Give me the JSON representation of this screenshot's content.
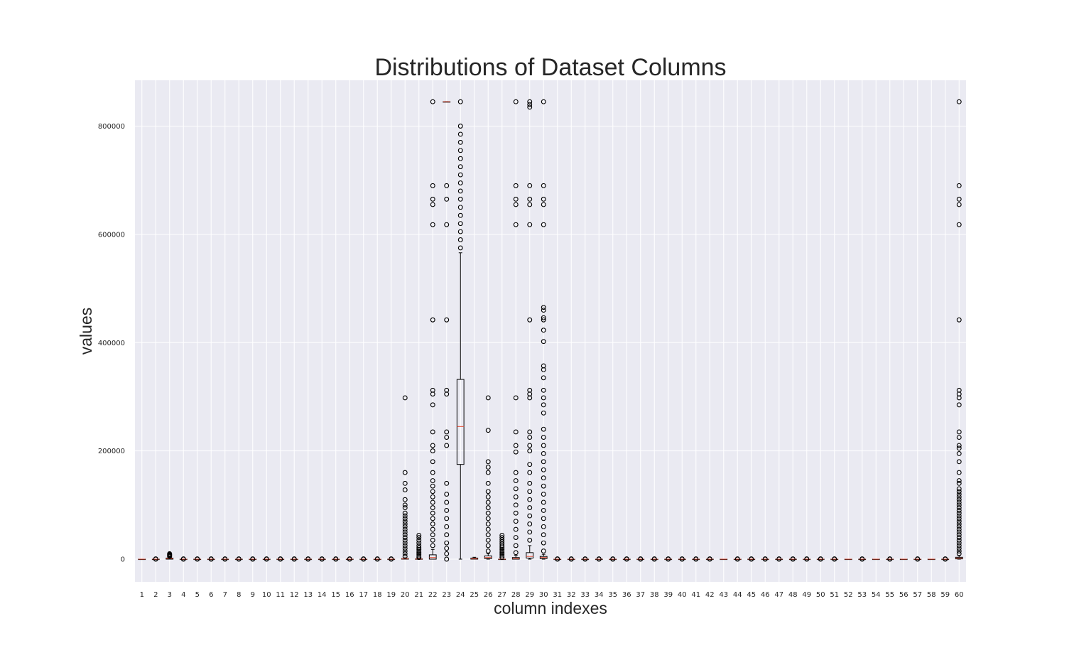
{
  "chart_data": {
    "type": "boxplot",
    "title": "Distributions of Dataset Columns",
    "xlabel": "column indexes",
    "ylabel": "values",
    "ylim": [
      -40000,
      885000
    ],
    "yticks": [
      0,
      200000,
      400000,
      600000,
      800000
    ],
    "ytick_labels": [
      "0",
      "200000",
      "400000",
      "600000",
      "800000"
    ],
    "grid": true,
    "colors": {
      "background": "#EAEAF2",
      "grid": "#FFFFFF",
      "box": "#000000",
      "median": "#E24A33"
    },
    "columns": [
      "1",
      "2",
      "3",
      "4",
      "5",
      "6",
      "7",
      "8",
      "9",
      "10",
      "11",
      "12",
      "13",
      "14",
      "15",
      "16",
      "17",
      "18",
      "19",
      "20",
      "21",
      "22",
      "23",
      "24",
      "25",
      "26",
      "27",
      "28",
      "29",
      "30",
      "31",
      "32",
      "33",
      "34",
      "35",
      "36",
      "37",
      "38",
      "39",
      "40",
      "41",
      "42",
      "43",
      "44",
      "45",
      "46",
      "47",
      "48",
      "49",
      "50",
      "51",
      "52",
      "53",
      "54",
      "55",
      "56",
      "57",
      "58",
      "59",
      "60"
    ],
    "boxes": [
      {
        "column": "1",
        "q1": 0,
        "median": 0,
        "q3": 0,
        "whislo": 0,
        "whishi": 0,
        "fliers": []
      },
      {
        "column": "2",
        "q1": 0,
        "median": 0,
        "q3": 0,
        "whislo": 0,
        "whishi": 0,
        "fliers": [
          0,
          500
        ]
      },
      {
        "column": "3",
        "q1": 0,
        "median": 1000,
        "q3": 2000,
        "whislo": 0,
        "whishi": 4000,
        "fliers": [
          5000,
          6000,
          7000,
          8000,
          9000,
          10000
        ]
      },
      {
        "column": "4",
        "q1": 0,
        "median": 0,
        "q3": 0,
        "whislo": 0,
        "whishi": 0,
        "fliers": [
          0,
          500
        ]
      },
      {
        "column": "5",
        "q1": 0,
        "median": 0,
        "q3": 0,
        "whislo": 0,
        "whishi": 0,
        "fliers": [
          0,
          500
        ]
      },
      {
        "column": "6",
        "q1": 0,
        "median": 0,
        "q3": 0,
        "whislo": 0,
        "whishi": 0,
        "fliers": [
          0,
          500
        ]
      },
      {
        "column": "7",
        "q1": 0,
        "median": 0,
        "q3": 0,
        "whislo": 0,
        "whishi": 0,
        "fliers": [
          0,
          500
        ]
      },
      {
        "column": "8",
        "q1": 0,
        "median": 0,
        "q3": 0,
        "whislo": 0,
        "whishi": 0,
        "fliers": [
          0,
          500
        ]
      },
      {
        "column": "9",
        "q1": 0,
        "median": 0,
        "q3": 0,
        "whislo": 0,
        "whishi": 0,
        "fliers": [
          0,
          500
        ]
      },
      {
        "column": "10",
        "q1": 0,
        "median": 0,
        "q3": 0,
        "whislo": 0,
        "whishi": 0,
        "fliers": [
          0,
          500
        ]
      },
      {
        "column": "11",
        "q1": 0,
        "median": 0,
        "q3": 0,
        "whislo": 0,
        "whishi": 0,
        "fliers": [
          0,
          500
        ]
      },
      {
        "column": "12",
        "q1": 0,
        "median": 0,
        "q3": 0,
        "whislo": 0,
        "whishi": 0,
        "fliers": [
          0,
          500
        ]
      },
      {
        "column": "13",
        "q1": 0,
        "median": 0,
        "q3": 0,
        "whislo": 0,
        "whishi": 0,
        "fliers": [
          0,
          500
        ]
      },
      {
        "column": "14",
        "q1": 0,
        "median": 0,
        "q3": 0,
        "whislo": 0,
        "whishi": 0,
        "fliers": [
          0,
          500
        ]
      },
      {
        "column": "15",
        "q1": 0,
        "median": 0,
        "q3": 0,
        "whislo": 0,
        "whishi": 0,
        "fliers": [
          0,
          500
        ]
      },
      {
        "column": "16",
        "q1": 0,
        "median": 0,
        "q3": 0,
        "whislo": 0,
        "whishi": 0,
        "fliers": [
          0,
          500
        ]
      },
      {
        "column": "17",
        "q1": 0,
        "median": 0,
        "q3": 0,
        "whislo": 0,
        "whishi": 0,
        "fliers": [
          0,
          500
        ]
      },
      {
        "column": "18",
        "q1": 0,
        "median": 0,
        "q3": 0,
        "whislo": 0,
        "whishi": 0,
        "fliers": [
          0,
          500
        ]
      },
      {
        "column": "19",
        "q1": 0,
        "median": 0,
        "q3": 0,
        "whislo": 0,
        "whishi": 0,
        "fliers": [
          0,
          500
        ]
      },
      {
        "column": "20",
        "q1": 0,
        "median": 500,
        "q3": 1000,
        "whislo": 0,
        "whishi": 2500,
        "fliers": [
          5000,
          10000,
          15000,
          20000,
          25000,
          30000,
          35000,
          40000,
          45000,
          50000,
          55000,
          60000,
          65000,
          70000,
          75000,
          80000,
          85000,
          95000,
          100000,
          110000,
          128000,
          140000,
          160000,
          298000
        ]
      },
      {
        "column": "21",
        "q1": 0,
        "median": 200,
        "q3": 500,
        "whislo": 0,
        "whishi": 1500,
        "fliers": [
          3000,
          6000,
          9000,
          12000,
          15000,
          18000,
          21000,
          25000,
          30000,
          35000,
          40000,
          44000
        ]
      },
      {
        "column": "22",
        "q1": 0,
        "median": 3000,
        "q3": 8000,
        "whislo": 0,
        "whishi": 18000,
        "fliers": [
          25000,
          35000,
          45000,
          55000,
          65000,
          75000,
          85000,
          95000,
          105000,
          115000,
          125000,
          135000,
          145000,
          160000,
          180000,
          200000,
          210000,
          235000,
          285000,
          305000,
          312000,
          442000,
          618000,
          655000,
          665000,
          690000,
          845000
        ]
      },
      {
        "column": "23",
        "q1": 845000,
        "median": 845000,
        "q3": 845000,
        "whislo": 845000,
        "whishi": 845000,
        "fliers": [
          0,
          10000,
          20000,
          30000,
          45000,
          60000,
          75000,
          90000,
          105000,
          120000,
          140000,
          210000,
          225000,
          235000,
          305000,
          312000,
          442000,
          618000,
          665000,
          690000
        ]
      },
      {
        "column": "24",
        "q1": 175000,
        "median": 245000,
        "q3": 332000,
        "whislo": 0,
        "whishi": 566000,
        "fliers": [
          575000,
          590000,
          605000,
          620000,
          635000,
          650000,
          665000,
          680000,
          695000,
          710000,
          725000,
          740000,
          755000,
          770000,
          785000,
          800000,
          845000
        ]
      },
      {
        "column": "25",
        "q1": 0,
        "median": 500,
        "q3": 2000,
        "whislo": 0,
        "whishi": 3500,
        "fliers": []
      },
      {
        "column": "26",
        "q1": 1000,
        "median": 3000,
        "q3": 6000,
        "whislo": 0,
        "whishi": 10000,
        "fliers": [
          15000,
          25000,
          35000,
          45000,
          55000,
          65000,
          75000,
          85000,
          95000,
          105000,
          115000,
          125000,
          140000,
          160000,
          170000,
          180000,
          238000,
          298000
        ]
      },
      {
        "column": "27",
        "q1": 0,
        "median": 0,
        "q3": 0,
        "whislo": 0,
        "whishi": 0,
        "fliers": [
          3000,
          6000,
          9000,
          12000,
          15000,
          18000,
          21000,
          24000,
          28000,
          32000,
          36000,
          40000,
          44000
        ]
      },
      {
        "column": "28",
        "q1": 0,
        "median": 1000,
        "q3": 3000,
        "whislo": 0,
        "whishi": 7000,
        "fliers": [
          12000,
          25000,
          40000,
          55000,
          70000,
          85000,
          100000,
          115000,
          130000,
          145000,
          160000,
          198000,
          210000,
          235000,
          298000,
          618000,
          655000,
          665000,
          690000,
          845000
        ]
      },
      {
        "column": "29",
        "q1": 2000,
        "median": 5000,
        "q3": 12000,
        "whislo": 0,
        "whishi": 25000,
        "fliers": [
          35000,
          50000,
          65000,
          80000,
          95000,
          110000,
          125000,
          140000,
          160000,
          175000,
          200000,
          210000,
          225000,
          235000,
          298000,
          305000,
          312000,
          442000,
          618000,
          655000,
          665000,
          690000,
          835000,
          840000,
          845000
        ]
      },
      {
        "column": "30",
        "q1": 1000,
        "median": 3000,
        "q3": 5000,
        "whislo": 0,
        "whishi": 9000,
        "fliers": [
          15000,
          30000,
          45000,
          60000,
          75000,
          90000,
          105000,
          120000,
          135000,
          150000,
          165000,
          180000,
          195000,
          210000,
          225000,
          240000,
          270000,
          285000,
          298000,
          312000,
          335000,
          350000,
          357000,
          402000,
          423000,
          442000,
          446000,
          460000,
          465000,
          618000,
          655000,
          665000,
          690000,
          845000
        ]
      },
      {
        "column": "31",
        "q1": 0,
        "median": 0,
        "q3": 0,
        "whislo": 0,
        "whishi": 0,
        "fliers": [
          0,
          500
        ]
      },
      {
        "column": "32",
        "q1": 0,
        "median": 0,
        "q3": 0,
        "whislo": 0,
        "whishi": 0,
        "fliers": [
          0,
          500
        ]
      },
      {
        "column": "33",
        "q1": 0,
        "median": 0,
        "q3": 0,
        "whislo": 0,
        "whishi": 0,
        "fliers": [
          0,
          500
        ]
      },
      {
        "column": "34",
        "q1": 0,
        "median": 0,
        "q3": 0,
        "whislo": 0,
        "whishi": 0,
        "fliers": [
          0,
          500
        ]
      },
      {
        "column": "35",
        "q1": 0,
        "median": 0,
        "q3": 0,
        "whislo": 0,
        "whishi": 0,
        "fliers": [
          0,
          500
        ]
      },
      {
        "column": "36",
        "q1": 0,
        "median": 0,
        "q3": 0,
        "whislo": 0,
        "whishi": 0,
        "fliers": [
          0,
          500
        ]
      },
      {
        "column": "37",
        "q1": 0,
        "median": 0,
        "q3": 0,
        "whislo": 0,
        "whishi": 0,
        "fliers": [
          0,
          500
        ]
      },
      {
        "column": "38",
        "q1": 0,
        "median": 0,
        "q3": 0,
        "whislo": 0,
        "whishi": 0,
        "fliers": [
          0,
          500
        ]
      },
      {
        "column": "39",
        "q1": 0,
        "median": 0,
        "q3": 0,
        "whislo": 0,
        "whishi": 0,
        "fliers": [
          0,
          500
        ]
      },
      {
        "column": "40",
        "q1": 0,
        "median": 0,
        "q3": 0,
        "whislo": 0,
        "whishi": 0,
        "fliers": [
          0,
          500
        ]
      },
      {
        "column": "41",
        "q1": 0,
        "median": 0,
        "q3": 0,
        "whislo": 0,
        "whishi": 0,
        "fliers": [
          0,
          500
        ]
      },
      {
        "column": "42",
        "q1": 0,
        "median": 0,
        "q3": 0,
        "whislo": 0,
        "whishi": 0,
        "fliers": [
          0,
          500
        ]
      },
      {
        "column": "43",
        "q1": 0,
        "median": 0,
        "q3": 0,
        "whislo": 0,
        "whishi": 0,
        "fliers": []
      },
      {
        "column": "44",
        "q1": 0,
        "median": 0,
        "q3": 0,
        "whislo": 0,
        "whishi": 0,
        "fliers": [
          0,
          500
        ]
      },
      {
        "column": "45",
        "q1": 0,
        "median": 0,
        "q3": 0,
        "whislo": 0,
        "whishi": 0,
        "fliers": [
          0,
          500
        ]
      },
      {
        "column": "46",
        "q1": 0,
        "median": 0,
        "q3": 0,
        "whislo": 0,
        "whishi": 0,
        "fliers": [
          0,
          500
        ]
      },
      {
        "column": "47",
        "q1": 0,
        "median": 0,
        "q3": 0,
        "whislo": 0,
        "whishi": 0,
        "fliers": [
          0,
          500
        ]
      },
      {
        "column": "48",
        "q1": 0,
        "median": 0,
        "q3": 0,
        "whislo": 0,
        "whishi": 0,
        "fliers": [
          0,
          500
        ]
      },
      {
        "column": "49",
        "q1": 0,
        "median": 0,
        "q3": 0,
        "whislo": 0,
        "whishi": 0,
        "fliers": [
          0,
          500
        ]
      },
      {
        "column": "50",
        "q1": 0,
        "median": 0,
        "q3": 0,
        "whislo": 0,
        "whishi": 0,
        "fliers": [
          0,
          500
        ]
      },
      {
        "column": "51",
        "q1": 0,
        "median": 0,
        "q3": 0,
        "whislo": 0,
        "whishi": 0,
        "fliers": [
          0,
          500
        ]
      },
      {
        "column": "52",
        "q1": 0,
        "median": 0,
        "q3": 0,
        "whislo": 0,
        "whishi": 0,
        "fliers": []
      },
      {
        "column": "53",
        "q1": 0,
        "median": 0,
        "q3": 0,
        "whislo": 0,
        "whishi": 0,
        "fliers": [
          0,
          500
        ]
      },
      {
        "column": "54",
        "q1": 0,
        "median": 0,
        "q3": 0,
        "whislo": 0,
        "whishi": 0,
        "fliers": []
      },
      {
        "column": "55",
        "q1": 0,
        "median": 0,
        "q3": 0,
        "whislo": 0,
        "whishi": 0,
        "fliers": [
          0,
          500
        ]
      },
      {
        "column": "56",
        "q1": 0,
        "median": 0,
        "q3": 0,
        "whislo": 0,
        "whishi": 0,
        "fliers": []
      },
      {
        "column": "57",
        "q1": 0,
        "median": 0,
        "q3": 0,
        "whislo": 0,
        "whishi": 0,
        "fliers": [
          0,
          500
        ]
      },
      {
        "column": "58",
        "q1": 0,
        "median": 0,
        "q3": 0,
        "whislo": 0,
        "whishi": 0,
        "fliers": []
      },
      {
        "column": "59",
        "q1": 0,
        "median": 0,
        "q3": 0,
        "whislo": 0,
        "whishi": 0,
        "fliers": [
          0,
          500
        ]
      },
      {
        "column": "60",
        "q1": 500,
        "median": 2000,
        "q3": 3500,
        "whislo": 0,
        "whishi": 7000,
        "fliers": [
          10000,
          15000,
          20000,
          25000,
          30000,
          35000,
          40000,
          45000,
          50000,
          55000,
          60000,
          65000,
          70000,
          75000,
          80000,
          85000,
          90000,
          95000,
          100000,
          105000,
          110000,
          115000,
          120000,
          125000,
          130000,
          140000,
          145000,
          160000,
          180000,
          195000,
          205000,
          210000,
          225000,
          235000,
          285000,
          298000,
          305000,
          312000,
          442000,
          618000,
          655000,
          665000,
          690000,
          845000
        ]
      }
    ]
  }
}
